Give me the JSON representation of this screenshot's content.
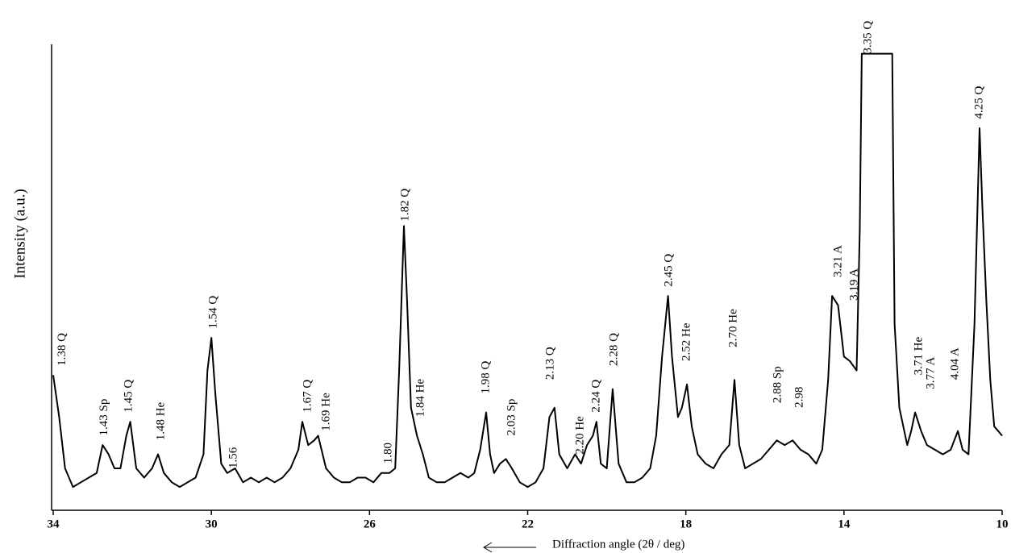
{
  "chart_data": {
    "type": "line",
    "x_label": "Diffraction angle (2θ / deg)",
    "y_label": "Intensity (a.u.)",
    "xlim": [
      34,
      10
    ],
    "ylim": [
      0,
      100
    ],
    "xticks": [
      34,
      30,
      26,
      22,
      18,
      14,
      10
    ],
    "color": "#000000",
    "x": [
      34.0,
      33.85,
      33.7,
      33.5,
      33.3,
      33.1,
      32.9,
      32.75,
      32.6,
      32.45,
      32.3,
      32.15,
      32.05,
      31.9,
      31.7,
      31.5,
      31.35,
      31.2,
      31.0,
      30.8,
      30.6,
      30.4,
      30.2,
      30.1,
      30.0,
      29.9,
      29.75,
      29.6,
      29.4,
      29.2,
      29.0,
      28.8,
      28.6,
      28.4,
      28.2,
      28.0,
      27.8,
      27.7,
      27.55,
      27.4,
      27.3,
      27.1,
      26.9,
      26.7,
      26.5,
      26.3,
      26.1,
      25.9,
      25.7,
      25.5,
      25.35,
      25.25,
      25.13,
      25.05,
      24.95,
      24.8,
      24.65,
      24.5,
      24.3,
      24.1,
      23.9,
      23.7,
      23.5,
      23.35,
      23.2,
      23.05,
      22.95,
      22.85,
      22.7,
      22.55,
      22.4,
      22.2,
      22.0,
      21.8,
      21.6,
      21.45,
      21.32,
      21.2,
      21.0,
      20.8,
      20.65,
      20.5,
      20.35,
      20.26,
      20.15,
      20.0,
      19.85,
      19.7,
      19.5,
      19.3,
      19.1,
      18.9,
      18.75,
      18.6,
      18.45,
      18.35,
      18.2,
      18.1,
      17.97,
      17.85,
      17.7,
      17.5,
      17.3,
      17.1,
      16.9,
      16.77,
      16.65,
      16.5,
      16.3,
      16.1,
      15.9,
      15.7,
      15.5,
      15.3,
      15.1,
      14.9,
      14.7,
      14.55,
      14.4,
      14.3,
      14.15,
      14.0,
      13.85,
      13.68,
      13.6,
      13.55,
      13.2,
      12.78,
      12.72,
      12.6,
      12.4,
      12.3,
      12.2,
      12.05,
      11.9,
      11.7,
      11.5,
      11.3,
      11.12,
      11.0,
      10.85,
      10.7,
      10.57,
      10.5,
      10.4,
      10.3,
      10.2,
      10.1,
      10.0
    ],
    "values": [
      29,
      20,
      9,
      5,
      6,
      7,
      8,
      14,
      12,
      9,
      9,
      16,
      19,
      9,
      7,
      9,
      12,
      8,
      6,
      5,
      6,
      7,
      12,
      30,
      37,
      25,
      10,
      8,
      9,
      6,
      7,
      6,
      7,
      6,
      7,
      9,
      13,
      19,
      14,
      15,
      16,
      9,
      7,
      6,
      6,
      7,
      7,
      6,
      8,
      8,
      9,
      30,
      61,
      45,
      22,
      16,
      12,
      7,
      6,
      6,
      7,
      8,
      7,
      8,
      13,
      21,
      12,
      8,
      10,
      11,
      9,
      6,
      5,
      6,
      9,
      20,
      22,
      12,
      9,
      12,
      10,
      14,
      16,
      19,
      10,
      9,
      26,
      10,
      6,
      6,
      7,
      9,
      16,
      33,
      46,
      33,
      20,
      22,
      27,
      18,
      12,
      10,
      9,
      12,
      14,
      28,
      14,
      9,
      10,
      11,
      13,
      15,
      14,
      15,
      13,
      12,
      10,
      13,
      28,
      46,
      44,
      33,
      32,
      30,
      60,
      98,
      98,
      98,
      40,
      22,
      14,
      17,
      21,
      17,
      14,
      13,
      12,
      13,
      17,
      13,
      12,
      40,
      82,
      65,
      45,
      28,
      18,
      17,
      16
    ],
    "annotations": [
      {
        "text": "1.38 Q",
        "x": 33.76,
        "y": 31
      },
      {
        "text": "1.43 Sp",
        "x": 32.7,
        "y": 16
      },
      {
        "text": "1.45 Q",
        "x": 32.08,
        "y": 21
      },
      {
        "text": "1.48 He",
        "x": 31.27,
        "y": 15
      },
      {
        "text": "1.54 Q",
        "x": 29.94,
        "y": 39
      },
      {
        "text": "1.56",
        "x": 29.43,
        "y": 9
      },
      {
        "text": "1.67 Q",
        "x": 27.56,
        "y": 21
      },
      {
        "text": "1.69 He",
        "x": 27.09,
        "y": 17
      },
      {
        "text": "1.80",
        "x": 25.52,
        "y": 10
      },
      {
        "text": "1.82 Q",
        "x": 25.09,
        "y": 62
      },
      {
        "text": "1.84 He",
        "x": 24.7,
        "y": 20
      },
      {
        "text": "1.98 Q",
        "x": 23.05,
        "y": 25
      },
      {
        "text": "2.03 Sp",
        "x": 22.4,
        "y": 16
      },
      {
        "text": "2.13 Q",
        "x": 21.42,
        "y": 28
      },
      {
        "text": "2.20 He",
        "x": 20.66,
        "y": 12
      },
      {
        "text": "2.24 Q",
        "x": 20.26,
        "y": 21
      },
      {
        "text": "2.28 Q",
        "x": 19.81,
        "y": 31
      },
      {
        "text": "2.45 Q",
        "x": 18.42,
        "y": 48
      },
      {
        "text": "2.52 He",
        "x": 17.97,
        "y": 32
      },
      {
        "text": "2.70 He",
        "x": 16.79,
        "y": 35
      },
      {
        "text": "2.88 Sp",
        "x": 15.67,
        "y": 23
      },
      {
        "text": "2.98",
        "x": 15.12,
        "y": 22
      },
      {
        "text": "3.21 A",
        "x": 14.14,
        "y": 50
      },
      {
        "text": "3.19 A",
        "x": 13.73,
        "y": 45
      },
      {
        "text": "3.35 Q",
        "x": 13.38,
        "y": 98
      },
      {
        "text": "3.71 He",
        "x": 12.1,
        "y": 29
      },
      {
        "text": "3.77 A",
        "x": 11.79,
        "y": 26
      },
      {
        "text": "4.04 A",
        "x": 11.18,
        "y": 28
      },
      {
        "text": "4.25 Q",
        "x": 10.57,
        "y": 84
      }
    ]
  }
}
